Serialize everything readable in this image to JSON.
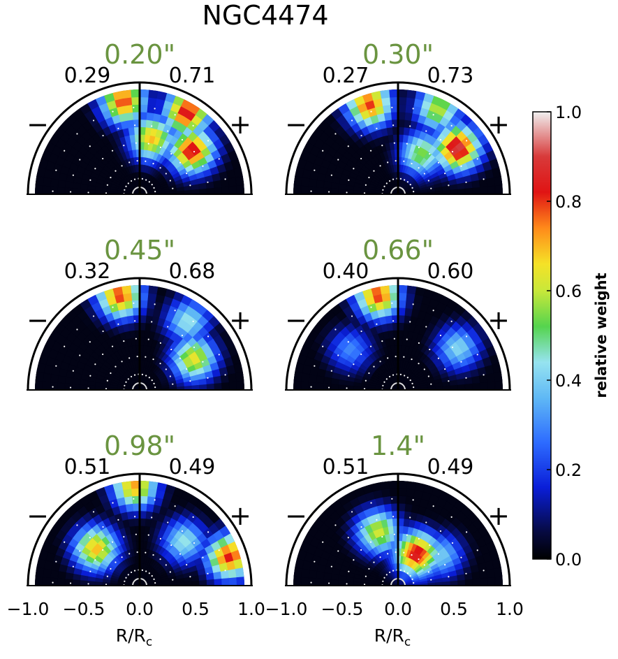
{
  "chart_data": {
    "type": "heatmap",
    "title": "NGC4474",
    "xlabel": "R/R",
    "xlabel_sub": "c",
    "xlim": [
      -1.0,
      1.0
    ],
    "x_ticks": [
      "−1.0",
      "−0.5",
      "0.0",
      "0.5",
      "1.0"
    ],
    "side_labels": {
      "left": "−",
      "right": "+"
    },
    "colorbar": {
      "label": "relative weight",
      "range": [
        0.0,
        1.0
      ],
      "ticks": [
        "0.0",
        "0.2",
        "0.4",
        "0.6",
        "0.8",
        "1.0"
      ],
      "stops": [
        [
          0.0,
          "#000000"
        ],
        [
          0.06,
          "#060a40"
        ],
        [
          0.16,
          "#0a1ed8"
        ],
        [
          0.26,
          "#2d6bff"
        ],
        [
          0.36,
          "#5fb8f5"
        ],
        [
          0.44,
          "#96e3f0"
        ],
        [
          0.52,
          "#55d44e"
        ],
        [
          0.6,
          "#c8e83a"
        ],
        [
          0.66,
          "#f5e227"
        ],
        [
          0.74,
          "#ff8a1a"
        ],
        [
          0.82,
          "#e01414"
        ],
        [
          0.9,
          "#d83a3a"
        ],
        [
          1.0,
          "#f0f0f0"
        ]
      ]
    },
    "panels": [
      {
        "aperture": "0.20\"",
        "left_fraction": "0.29",
        "right_fraction": "0.71",
        "blobs": [
          {
            "r": 0.9,
            "a": 100,
            "w": 0.8
          },
          {
            "r": 0.9,
            "a": 60,
            "w": 0.86
          },
          {
            "r": 0.65,
            "a": 40,
            "w": 0.85
          },
          {
            "r": 0.55,
            "a": 78,
            "w": 0.7
          }
        ]
      },
      {
        "aperture": "0.30\"",
        "left_fraction": "0.27",
        "right_fraction": "0.73",
        "blobs": [
          {
            "r": 0.9,
            "a": 108,
            "w": 0.8
          },
          {
            "r": 0.72,
            "a": 38,
            "w": 0.92
          },
          {
            "r": 0.9,
            "a": 65,
            "w": 0.6
          },
          {
            "r": 0.45,
            "a": 60,
            "w": 0.55
          }
        ]
      },
      {
        "aperture": "0.45\"",
        "left_fraction": "0.32",
        "right_fraction": "0.68",
        "blobs": [
          {
            "r": 0.92,
            "a": 102,
            "w": 0.8
          },
          {
            "r": 0.6,
            "a": 30,
            "w": 0.65
          },
          {
            "r": 0.8,
            "a": 55,
            "w": 0.45
          }
        ]
      },
      {
        "aperture": "0.66\"",
        "left_fraction": "0.40",
        "right_fraction": "0.60",
        "blobs": [
          {
            "r": 0.92,
            "a": 102,
            "w": 0.8
          },
          {
            "r": 0.7,
            "a": 35,
            "w": 0.42
          },
          {
            "r": 0.6,
            "a": 140,
            "w": 0.3
          }
        ]
      },
      {
        "aperture": "0.98\"",
        "left_fraction": "0.51",
        "right_fraction": "0.49",
        "blobs": [
          {
            "r": 0.95,
            "a": 93,
            "w": 0.72
          },
          {
            "r": 0.55,
            "a": 140,
            "w": 0.7
          },
          {
            "r": 0.9,
            "a": 18,
            "w": 0.82
          },
          {
            "r": 0.6,
            "a": 45,
            "w": 0.45
          }
        ]
      },
      {
        "aperture": "1.4\"",
        "left_fraction": "0.51",
        "right_fraction": "0.49",
        "blobs": [
          {
            "r": 0.55,
            "a": 110,
            "w": 0.62
          },
          {
            "r": 0.35,
            "a": 60,
            "w": 0.86
          },
          {
            "r": 0.5,
            "a": 35,
            "w": 0.4
          }
        ]
      }
    ]
  }
}
